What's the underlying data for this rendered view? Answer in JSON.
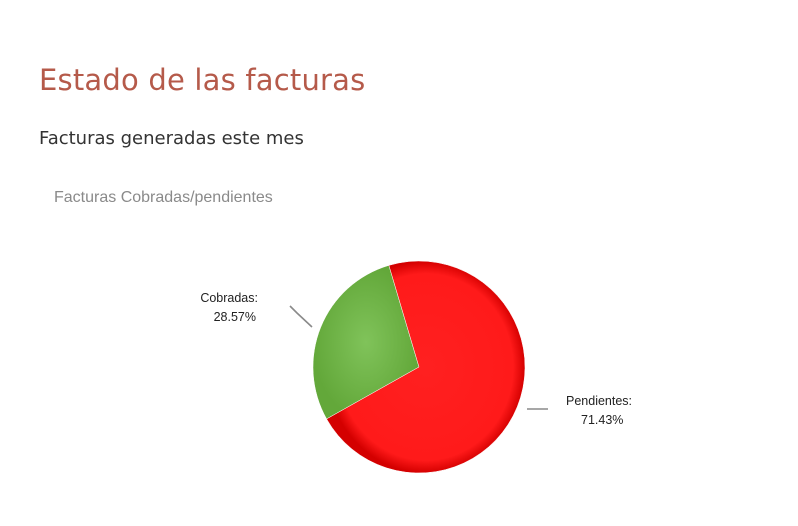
{
  "page": {
    "title": "Estado de las facturas",
    "subtitle": "Facturas generadas este mes"
  },
  "chart_data": {
    "type": "pie",
    "title": "Facturas Cobradas/pendientes",
    "slices": [
      {
        "name": "Cobradas",
        "label": "Cobradas:",
        "value": 28.57,
        "value_label": "28.57%",
        "color": "#6cb43f"
      },
      {
        "name": "Pendientes",
        "label": "Pendientes:",
        "value": 71.43,
        "value_label": "71.43%",
        "color": "#ff0000"
      }
    ]
  },
  "colors": {
    "title": "#b55a4a",
    "subtitle": "#333333",
    "chart_title": "#8a8a8a"
  }
}
